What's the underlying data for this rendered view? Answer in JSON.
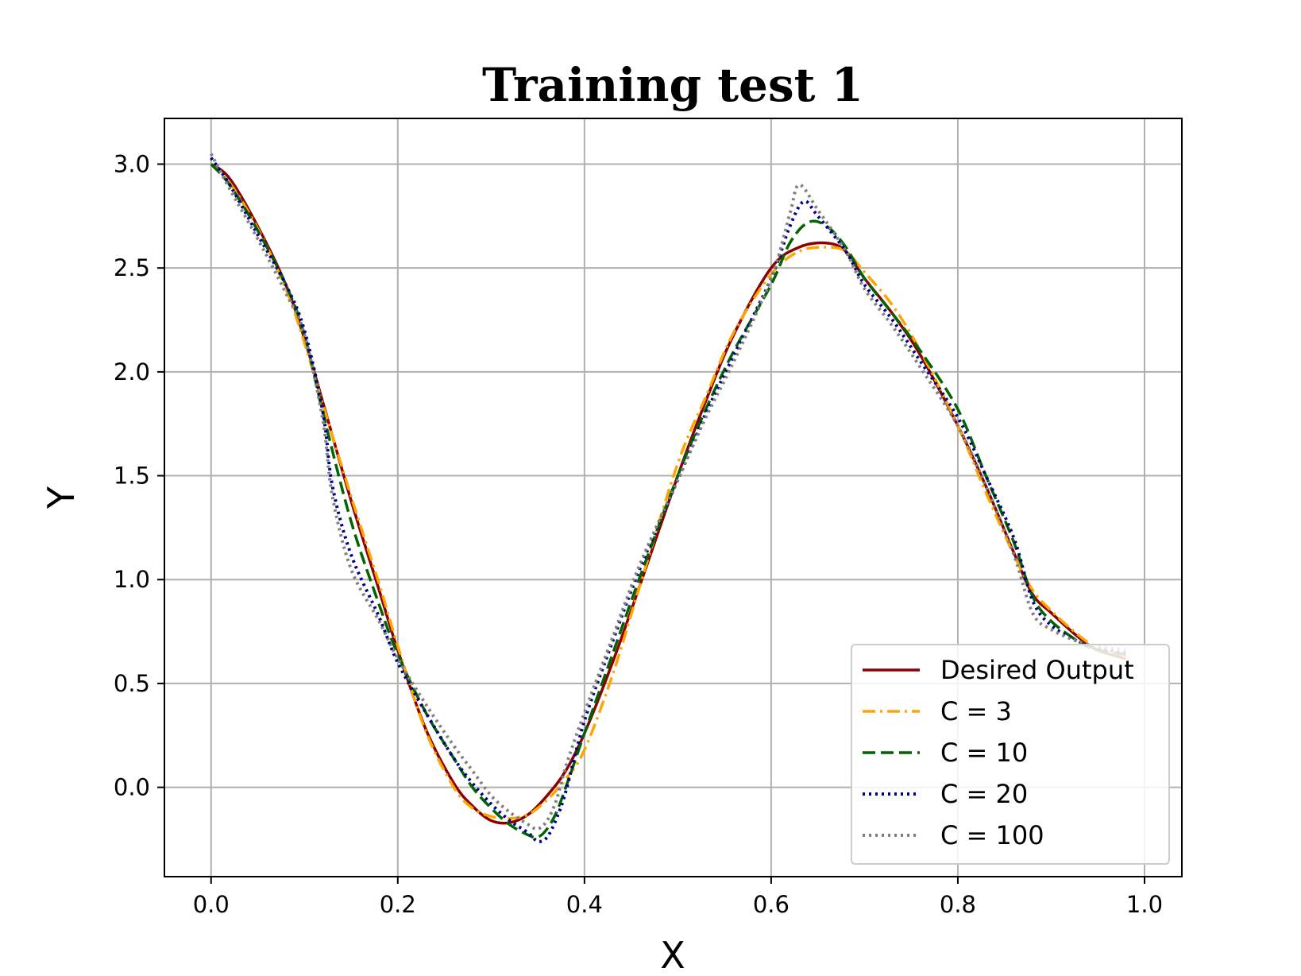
{
  "chart_data": {
    "type": "line",
    "title": "Training test 1",
    "xlabel": "X",
    "ylabel": "Y",
    "xlim": [
      -0.05,
      1.04
    ],
    "ylim": [
      -0.43,
      3.22
    ],
    "xticks": [
      "0.0",
      "0.2",
      "0.4",
      "0.6",
      "0.8",
      "1.0"
    ],
    "yticks": [
      "0.0",
      "0.5",
      "1.0",
      "1.5",
      "2.0",
      "2.5",
      "3.0"
    ],
    "grid": true,
    "legend_position": "lower-right",
    "series": [
      {
        "name": "Desired Output",
        "color": "#8b0000",
        "style": "solid",
        "x": [
          0.0,
          0.02,
          0.05,
          0.08,
          0.1,
          0.12,
          0.15,
          0.18,
          0.2,
          0.23,
          0.26,
          0.28,
          0.3,
          0.32,
          0.34,
          0.36,
          0.38,
          0.4,
          0.43,
          0.46,
          0.5,
          0.53,
          0.56,
          0.6,
          0.63,
          0.66,
          0.68,
          0.7,
          0.73,
          0.76,
          0.8,
          0.83,
          0.86,
          0.88,
          0.9,
          0.93,
          0.95,
          0.98
        ],
        "y": [
          3.0,
          2.93,
          2.7,
          2.42,
          2.16,
          1.85,
          1.38,
          0.95,
          0.66,
          0.28,
          0.02,
          -0.09,
          -0.16,
          -0.17,
          -0.13,
          -0.04,
          0.08,
          0.26,
          0.6,
          0.98,
          1.5,
          1.86,
          2.18,
          2.5,
          2.6,
          2.62,
          2.58,
          2.45,
          2.28,
          2.08,
          1.74,
          1.45,
          1.13,
          0.93,
          0.84,
          0.72,
          0.66,
          0.62
        ]
      },
      {
        "name": "C = 3",
        "color": "#ffa500",
        "style": "dashdot",
        "x": [
          0.0,
          0.02,
          0.05,
          0.08,
          0.1,
          0.12,
          0.15,
          0.18,
          0.2,
          0.23,
          0.26,
          0.28,
          0.3,
          0.32,
          0.34,
          0.36,
          0.38,
          0.4,
          0.43,
          0.46,
          0.5,
          0.53,
          0.56,
          0.6,
          0.63,
          0.66,
          0.68,
          0.7,
          0.73,
          0.76,
          0.8,
          0.83,
          0.86,
          0.88,
          0.9,
          0.93,
          0.95,
          0.98
        ],
        "y": [
          3.0,
          2.91,
          2.69,
          2.4,
          2.14,
          1.84,
          1.4,
          0.98,
          0.68,
          0.27,
          0.0,
          -0.1,
          -0.14,
          -0.15,
          -0.13,
          -0.06,
          0.04,
          0.18,
          0.54,
          0.98,
          1.56,
          1.88,
          2.19,
          2.47,
          2.58,
          2.6,
          2.58,
          2.48,
          2.32,
          2.1,
          1.74,
          1.42,
          1.12,
          0.95,
          0.85,
          0.73,
          0.67,
          0.63
        ]
      },
      {
        "name": "C = 10",
        "color": "#006400",
        "style": "dashed",
        "x": [
          0.0,
          0.02,
          0.05,
          0.08,
          0.1,
          0.12,
          0.15,
          0.18,
          0.2,
          0.23,
          0.26,
          0.28,
          0.3,
          0.32,
          0.34,
          0.35,
          0.36,
          0.37,
          0.38,
          0.4,
          0.43,
          0.46,
          0.5,
          0.53,
          0.56,
          0.6,
          0.62,
          0.64,
          0.66,
          0.68,
          0.7,
          0.73,
          0.76,
          0.8,
          0.83,
          0.86,
          0.88,
          0.9,
          0.93,
          0.95,
          0.98
        ],
        "y": [
          3.0,
          2.9,
          2.68,
          2.42,
          2.18,
          1.8,
          1.28,
          0.88,
          0.64,
          0.36,
          0.14,
          0.0,
          -0.1,
          -0.18,
          -0.23,
          -0.24,
          -0.2,
          -0.12,
          0.0,
          0.26,
          0.64,
          1.02,
          1.5,
          1.82,
          2.1,
          2.42,
          2.62,
          2.72,
          2.7,
          2.6,
          2.45,
          2.28,
          2.1,
          1.82,
          1.5,
          1.18,
          0.92,
          0.8,
          0.7,
          0.66,
          0.64
        ]
      },
      {
        "name": "C = 20",
        "color": "#00008b",
        "style": "dotted",
        "x": [
          0.0,
          0.02,
          0.05,
          0.08,
          0.1,
          0.12,
          0.13,
          0.15,
          0.18,
          0.2,
          0.23,
          0.26,
          0.28,
          0.3,
          0.32,
          0.34,
          0.35,
          0.36,
          0.37,
          0.38,
          0.4,
          0.43,
          0.46,
          0.5,
          0.53,
          0.56,
          0.6,
          0.62,
          0.635,
          0.65,
          0.68,
          0.7,
          0.73,
          0.76,
          0.8,
          0.83,
          0.86,
          0.88,
          0.9,
          0.93,
          0.95,
          0.98
        ],
        "y": [
          3.03,
          2.9,
          2.66,
          2.42,
          2.2,
          1.8,
          1.45,
          1.12,
          0.82,
          0.6,
          0.36,
          0.14,
          0.02,
          -0.08,
          -0.16,
          -0.22,
          -0.26,
          -0.24,
          -0.15,
          -0.02,
          0.32,
          0.7,
          1.06,
          1.48,
          1.8,
          2.08,
          2.45,
          2.7,
          2.82,
          2.75,
          2.58,
          2.42,
          2.25,
          2.05,
          1.78,
          1.5,
          1.2,
          0.9,
          0.78,
          0.7,
          0.67,
          0.65
        ]
      },
      {
        "name": "C = 100",
        "color": "#808080",
        "style": "dotted",
        "x": [
          0.0,
          0.02,
          0.05,
          0.08,
          0.1,
          0.12,
          0.13,
          0.15,
          0.18,
          0.2,
          0.23,
          0.26,
          0.28,
          0.3,
          0.32,
          0.34,
          0.35,
          0.36,
          0.37,
          0.38,
          0.4,
          0.43,
          0.46,
          0.5,
          0.53,
          0.56,
          0.6,
          0.62,
          0.63,
          0.65,
          0.68,
          0.7,
          0.73,
          0.76,
          0.8,
          0.83,
          0.86,
          0.88,
          0.9,
          0.93,
          0.95,
          0.98
        ],
        "y": [
          3.05,
          2.88,
          2.64,
          2.38,
          2.18,
          1.76,
          1.4,
          1.05,
          0.8,
          0.62,
          0.4,
          0.2,
          0.08,
          -0.04,
          -0.12,
          -0.18,
          -0.2,
          -0.16,
          -0.06,
          0.1,
          0.36,
          0.72,
          1.08,
          1.48,
          1.78,
          2.05,
          2.45,
          2.76,
          2.9,
          2.78,
          2.58,
          2.4,
          2.22,
          2.02,
          1.74,
          1.45,
          1.12,
          0.84,
          0.76,
          0.7,
          0.68,
          0.66
        ]
      }
    ]
  }
}
